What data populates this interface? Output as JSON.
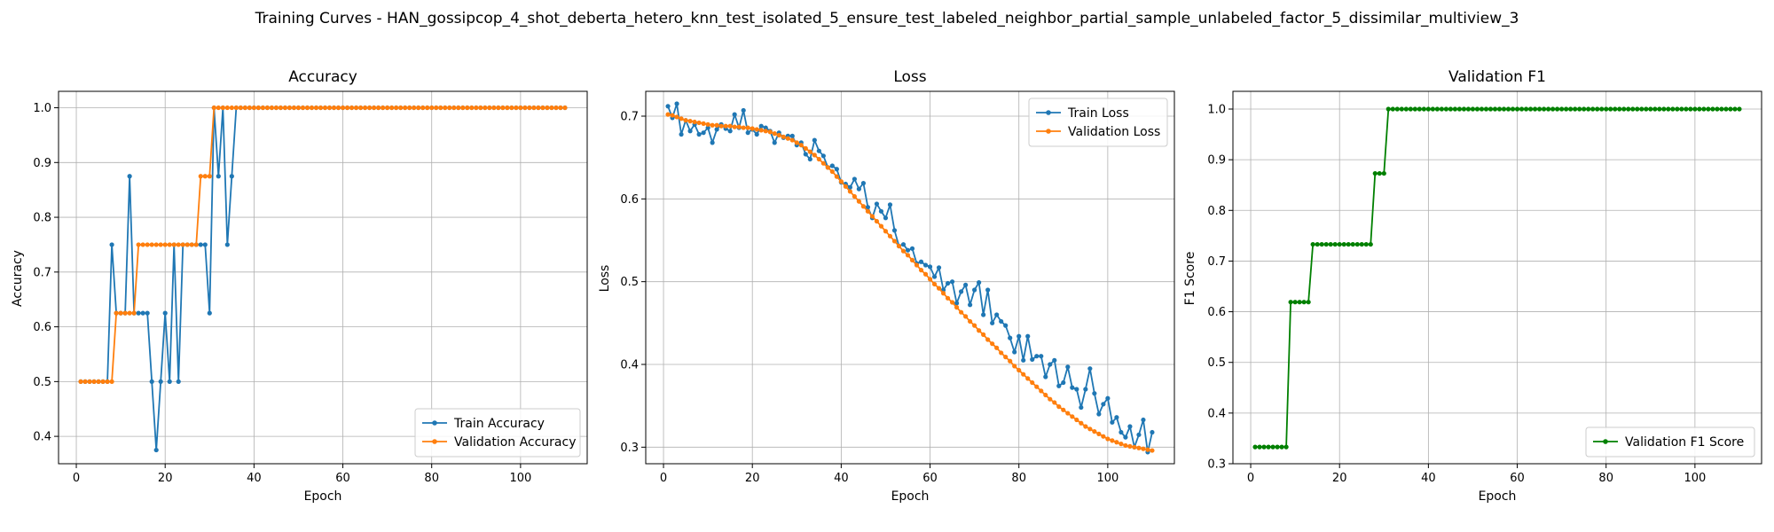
{
  "figure": {
    "suptitle": "Training Curves - HAN_gossipcop_4_shot_deberta_hetero_knn_test_isolated_5_ensure_test_labeled_neighbor_partial_sample_unlabeled_factor_5_dissimilar_multiview_3"
  },
  "chart_data": [
    {
      "type": "line",
      "title": "Accuracy",
      "xlabel": "Epoch",
      "ylabel": "Accuracy",
      "xlim": [
        -4,
        115
      ],
      "ylim": [
        0.35,
        1.03
      ],
      "xticks": [
        0,
        20,
        40,
        60,
        80,
        100
      ],
      "yticks": [
        0.4,
        0.5,
        0.6,
        0.7,
        0.8,
        0.9,
        1.0
      ],
      "ytick_labels": [
        "0.4",
        "0.5",
        "0.6",
        "0.7",
        "0.8",
        "0.9",
        "1.0"
      ],
      "grid": true,
      "legend_position": "lower-right",
      "x": [
        1,
        2,
        3,
        4,
        5,
        6,
        7,
        8,
        9,
        10,
        11,
        12,
        13,
        14,
        15,
        16,
        17,
        18,
        19,
        20,
        21,
        22,
        23,
        24,
        25,
        26,
        27,
        28,
        29,
        30,
        31,
        32,
        33,
        34,
        35,
        36,
        37,
        38,
        39,
        40,
        41,
        42,
        43,
        44,
        45,
        46,
        47,
        48,
        49,
        50,
        51,
        52,
        53,
        54,
        55,
        56,
        57,
        58,
        59,
        60,
        61,
        62,
        63,
        64,
        65,
        66,
        67,
        68,
        69,
        70,
        71,
        72,
        73,
        74,
        75,
        76,
        77,
        78,
        79,
        80,
        81,
        82,
        83,
        84,
        85,
        86,
        87,
        88,
        89,
        90,
        91,
        92,
        93,
        94,
        95,
        96,
        97,
        98,
        99,
        100,
        101,
        102,
        103,
        104,
        105,
        106,
        107,
        108,
        109,
        110
      ],
      "series": [
        {
          "name": "Train Accuracy",
          "color": "#1f77b4",
          "values": [
            0.5,
            0.5,
            0.5,
            0.5,
            0.5,
            0.5,
            0.5,
            0.75,
            0.625,
            0.625,
            0.625,
            0.875,
            0.625,
            0.625,
            0.625,
            0.625,
            0.5,
            0.375,
            0.5,
            0.625,
            0.5,
            0.75,
            0.5,
            0.75,
            0.75,
            0.75,
            0.75,
            0.75,
            0.75,
            0.625,
            1.0,
            0.875,
            1.0,
            0.75,
            0.875,
            1.0,
            1.0,
            1.0,
            1.0,
            1.0,
            1.0,
            1.0,
            1.0,
            1.0,
            1.0,
            1.0,
            1.0,
            1.0,
            1.0,
            1.0,
            1.0,
            1.0,
            1.0,
            1.0,
            1.0,
            1.0,
            1.0,
            1.0,
            1.0,
            1.0,
            1.0,
            1.0,
            1.0,
            1.0,
            1.0,
            1.0,
            1.0,
            1.0,
            1.0,
            1.0,
            1.0,
            1.0,
            1.0,
            1.0,
            1.0,
            1.0,
            1.0,
            1.0,
            1.0,
            1.0,
            1.0,
            1.0,
            1.0,
            1.0,
            1.0,
            1.0,
            1.0,
            1.0,
            1.0,
            1.0,
            1.0,
            1.0,
            1.0,
            1.0,
            1.0,
            1.0,
            1.0,
            1.0,
            1.0,
            1.0,
            1.0,
            1.0,
            1.0,
            1.0,
            1.0,
            1.0,
            1.0,
            1.0,
            1.0,
            1.0
          ]
        },
        {
          "name": "Validation Accuracy",
          "color": "#ff7f0e",
          "values": [
            0.5,
            0.5,
            0.5,
            0.5,
            0.5,
            0.5,
            0.5,
            0.5,
            0.625,
            0.625,
            0.625,
            0.625,
            0.625,
            0.75,
            0.75,
            0.75,
            0.75,
            0.75,
            0.75,
            0.75,
            0.75,
            0.75,
            0.75,
            0.75,
            0.75,
            0.75,
            0.75,
            0.875,
            0.875,
            0.875,
            1.0,
            1.0,
            1.0,
            1.0,
            1.0,
            1.0,
            1.0,
            1.0,
            1.0,
            1.0,
            1.0,
            1.0,
            1.0,
            1.0,
            1.0,
            1.0,
            1.0,
            1.0,
            1.0,
            1.0,
            1.0,
            1.0,
            1.0,
            1.0,
            1.0,
            1.0,
            1.0,
            1.0,
            1.0,
            1.0,
            1.0,
            1.0,
            1.0,
            1.0,
            1.0,
            1.0,
            1.0,
            1.0,
            1.0,
            1.0,
            1.0,
            1.0,
            1.0,
            1.0,
            1.0,
            1.0,
            1.0,
            1.0,
            1.0,
            1.0,
            1.0,
            1.0,
            1.0,
            1.0,
            1.0,
            1.0,
            1.0,
            1.0,
            1.0,
            1.0,
            1.0,
            1.0,
            1.0,
            1.0,
            1.0,
            1.0,
            1.0,
            1.0,
            1.0,
            1.0,
            1.0,
            1.0,
            1.0,
            1.0,
            1.0,
            1.0,
            1.0,
            1.0,
            1.0,
            1.0
          ]
        }
      ]
    },
    {
      "type": "line",
      "title": "Loss",
      "xlabel": "Epoch",
      "ylabel": "Loss",
      "xlim": [
        -4,
        115
      ],
      "ylim": [
        0.28,
        0.73
      ],
      "xticks": [
        0,
        20,
        40,
        60,
        80,
        100
      ],
      "yticks": [
        0.3,
        0.4,
        0.5,
        0.6,
        0.7
      ],
      "ytick_labels": [
        "0.3",
        "0.4",
        "0.5",
        "0.6",
        "0.7"
      ],
      "grid": true,
      "legend_position": "upper-right",
      "x": [
        1,
        2,
        3,
        4,
        5,
        6,
        7,
        8,
        9,
        10,
        11,
        12,
        13,
        14,
        15,
        16,
        17,
        18,
        19,
        20,
        21,
        22,
        23,
        24,
        25,
        26,
        27,
        28,
        29,
        30,
        31,
        32,
        33,
        34,
        35,
        36,
        37,
        38,
        39,
        40,
        41,
        42,
        43,
        44,
        45,
        46,
        47,
        48,
        49,
        50,
        51,
        52,
        53,
        54,
        55,
        56,
        57,
        58,
        59,
        60,
        61,
        62,
        63,
        64,
        65,
        66,
        67,
        68,
        69,
        70,
        71,
        72,
        73,
        74,
        75,
        76,
        77,
        78,
        79,
        80,
        81,
        82,
        83,
        84,
        85,
        86,
        87,
        88,
        89,
        90,
        91,
        92,
        93,
        94,
        95,
        96,
        97,
        98,
        99,
        100,
        101,
        102,
        103,
        104,
        105,
        106,
        107,
        108,
        109,
        110
      ],
      "series": [
        {
          "name": "Train Loss",
          "color": "#1f77b4",
          "values": [
            0.712,
            0.698,
            0.715,
            0.678,
            0.695,
            0.682,
            0.69,
            0.678,
            0.68,
            0.686,
            0.668,
            0.684,
            0.69,
            0.685,
            0.682,
            0.702,
            0.686,
            0.707,
            0.68,
            0.684,
            0.678,
            0.688,
            0.686,
            0.682,
            0.668,
            0.68,
            0.674,
            0.676,
            0.676,
            0.665,
            0.668,
            0.654,
            0.648,
            0.671,
            0.658,
            0.652,
            0.638,
            0.64,
            0.636,
            0.62,
            0.618,
            0.614,
            0.624,
            0.612,
            0.619,
            0.59,
            0.577,
            0.594,
            0.585,
            0.577,
            0.593,
            0.562,
            0.543,
            0.545,
            0.538,
            0.54,
            0.522,
            0.524,
            0.52,
            0.518,
            0.506,
            0.517,
            0.49,
            0.498,
            0.5,
            0.474,
            0.488,
            0.496,
            0.472,
            0.49,
            0.499,
            0.46,
            0.49,
            0.45,
            0.46,
            0.452,
            0.447,
            0.432,
            0.415,
            0.434,
            0.405,
            0.434,
            0.406,
            0.41,
            0.41,
            0.385,
            0.4,
            0.405,
            0.374,
            0.378,
            0.397,
            0.372,
            0.37,
            0.348,
            0.37,
            0.395,
            0.365,
            0.34,
            0.352,
            0.359,
            0.33,
            0.336,
            0.318,
            0.312,
            0.325,
            0.3,
            0.315,
            0.333,
            0.294,
            0.318
          ]
        },
        {
          "name": "Validation Loss",
          "color": "#ff7f0e",
          "values": [
            0.702,
            0.701,
            0.699,
            0.697,
            0.695,
            0.694,
            0.693,
            0.692,
            0.691,
            0.69,
            0.689,
            0.689,
            0.688,
            0.688,
            0.688,
            0.687,
            0.687,
            0.686,
            0.686,
            0.685,
            0.684,
            0.683,
            0.682,
            0.681,
            0.679,
            0.677,
            0.675,
            0.673,
            0.671,
            0.668,
            0.665,
            0.661,
            0.657,
            0.653,
            0.648,
            0.643,
            0.638,
            0.633,
            0.627,
            0.621,
            0.615,
            0.609,
            0.603,
            0.597,
            0.591,
            0.585,
            0.579,
            0.573,
            0.567,
            0.561,
            0.555,
            0.549,
            0.543,
            0.537,
            0.532,
            0.526,
            0.52,
            0.514,
            0.509,
            0.503,
            0.497,
            0.492,
            0.486,
            0.48,
            0.475,
            0.469,
            0.463,
            0.458,
            0.452,
            0.447,
            0.441,
            0.436,
            0.43,
            0.425,
            0.42,
            0.414,
            0.409,
            0.404,
            0.398,
            0.393,
            0.388,
            0.383,
            0.378,
            0.373,
            0.368,
            0.363,
            0.358,
            0.354,
            0.349,
            0.345,
            0.341,
            0.337,
            0.333,
            0.329,
            0.325,
            0.322,
            0.319,
            0.316,
            0.313,
            0.31,
            0.308,
            0.306,
            0.304,
            0.302,
            0.301,
            0.3,
            0.299,
            0.298,
            0.297,
            0.296
          ]
        }
      ]
    },
    {
      "type": "line",
      "title": "Validation F1",
      "xlabel": "Epoch",
      "ylabel": "F1 Score",
      "xlim": [
        -4,
        115
      ],
      "ylim": [
        0.3,
        1.035
      ],
      "xticks": [
        0,
        20,
        40,
        60,
        80,
        100
      ],
      "yticks": [
        0.3,
        0.4,
        0.5,
        0.6,
        0.7,
        0.8,
        0.9,
        1.0
      ],
      "ytick_labels": [
        "0.3",
        "0.4",
        "0.5",
        "0.6",
        "0.7",
        "0.8",
        "0.9",
        "1.0"
      ],
      "grid": true,
      "legend_position": "lower-right",
      "x": [
        1,
        2,
        3,
        4,
        5,
        6,
        7,
        8,
        9,
        10,
        11,
        12,
        13,
        14,
        15,
        16,
        17,
        18,
        19,
        20,
        21,
        22,
        23,
        24,
        25,
        26,
        27,
        28,
        29,
        30,
        31,
        32,
        33,
        34,
        35,
        36,
        37,
        38,
        39,
        40,
        41,
        42,
        43,
        44,
        45,
        46,
        47,
        48,
        49,
        50,
        51,
        52,
        53,
        54,
        55,
        56,
        57,
        58,
        59,
        60,
        61,
        62,
        63,
        64,
        65,
        66,
        67,
        68,
        69,
        70,
        71,
        72,
        73,
        74,
        75,
        76,
        77,
        78,
        79,
        80,
        81,
        82,
        83,
        84,
        85,
        86,
        87,
        88,
        89,
        90,
        91,
        92,
        93,
        94,
        95,
        96,
        97,
        98,
        99,
        100,
        101,
        102,
        103,
        104,
        105,
        106,
        107,
        108,
        109,
        110
      ],
      "series": [
        {
          "name": "Validation F1 Score",
          "color": "#008000",
          "values": [
            0.333,
            0.333,
            0.333,
            0.333,
            0.333,
            0.333,
            0.333,
            0.333,
            0.619,
            0.619,
            0.619,
            0.619,
            0.619,
            0.733,
            0.733,
            0.733,
            0.733,
            0.733,
            0.733,
            0.733,
            0.733,
            0.733,
            0.733,
            0.733,
            0.733,
            0.733,
            0.733,
            0.873,
            0.873,
            0.873,
            1.0,
            1.0,
            1.0,
            1.0,
            1.0,
            1.0,
            1.0,
            1.0,
            1.0,
            1.0,
            1.0,
            1.0,
            1.0,
            1.0,
            1.0,
            1.0,
            1.0,
            1.0,
            1.0,
            1.0,
            1.0,
            1.0,
            1.0,
            1.0,
            1.0,
            1.0,
            1.0,
            1.0,
            1.0,
            1.0,
            1.0,
            1.0,
            1.0,
            1.0,
            1.0,
            1.0,
            1.0,
            1.0,
            1.0,
            1.0,
            1.0,
            1.0,
            1.0,
            1.0,
            1.0,
            1.0,
            1.0,
            1.0,
            1.0,
            1.0,
            1.0,
            1.0,
            1.0,
            1.0,
            1.0,
            1.0,
            1.0,
            1.0,
            1.0,
            1.0,
            1.0,
            1.0,
            1.0,
            1.0,
            1.0,
            1.0,
            1.0,
            1.0,
            1.0,
            1.0,
            1.0,
            1.0,
            1.0,
            1.0,
            1.0,
            1.0,
            1.0,
            1.0,
            1.0,
            1.0
          ]
        }
      ]
    }
  ]
}
